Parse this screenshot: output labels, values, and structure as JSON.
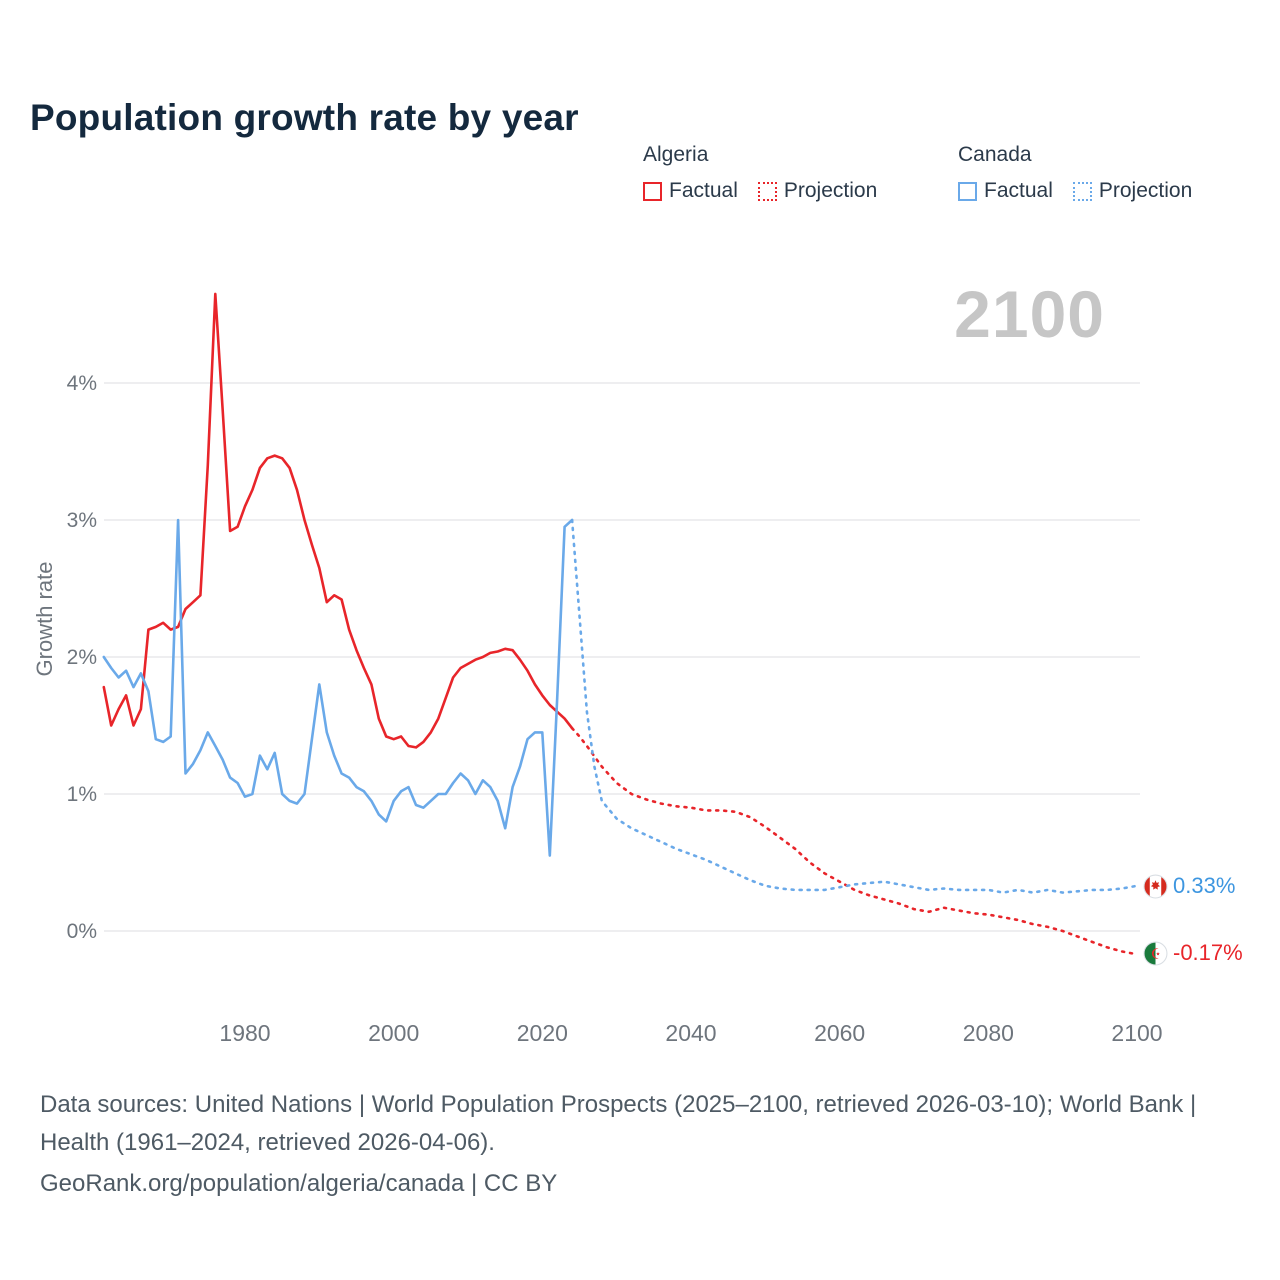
{
  "title": "Population growth rate by year",
  "watermark": "2100",
  "legend": {
    "groups": [
      {
        "name": "Algeria",
        "color": "#e8252a",
        "items": [
          {
            "label": "Factual",
            "style": "solid"
          },
          {
            "label": "Projection",
            "style": "dotted"
          }
        ]
      },
      {
        "name": "Canada",
        "color": "#6aa9e9",
        "items": [
          {
            "label": "Factual",
            "style": "solid"
          },
          {
            "label": "Projection",
            "style": "dotted"
          }
        ]
      }
    ]
  },
  "end_labels": [
    {
      "country": "Canada",
      "flag": "canada-flag-icon",
      "value": "0.33%",
      "color": "#3d96e0"
    },
    {
      "country": "Algeria",
      "flag": "algeria-flag-icon",
      "value": "-0.17%",
      "color": "#e8252a"
    }
  ],
  "footer": {
    "sources": "Data sources: United Nations | World Population Prospects (2025–2100, retrieved 2026-03-10); World Bank | Health (1961–2024, retrieved 2026-04-06).",
    "attribution": "GeoRank.org/population/algeria/canada | CC BY"
  },
  "chart_data": {
    "type": "line",
    "title": "Population growth rate by year",
    "xlabel": "",
    "ylabel": "Growth rate",
    "grid": "horizontal",
    "legend_position": "top-right",
    "xlim": [
      1961,
      2100
    ],
    "ylim": [
      -0.4,
      4.8
    ],
    "y_axis": {
      "ticks": [
        {
          "value": 0,
          "label": "0%"
        },
        {
          "value": 1,
          "label": "1%"
        },
        {
          "value": 2,
          "label": "2%"
        },
        {
          "value": 3,
          "label": "3%"
        },
        {
          "value": 4,
          "label": "4%"
        }
      ]
    },
    "x_axis": {
      "ticks": [
        1980,
        2000,
        2020,
        2040,
        2060,
        2080,
        2100
      ]
    },
    "series": [
      {
        "name": "Algeria Factual",
        "color": "#e8252a",
        "style": "solid",
        "points": [
          [
            1961,
            1.78
          ],
          [
            1962,
            1.5
          ],
          [
            1963,
            1.62
          ],
          [
            1964,
            1.72
          ],
          [
            1965,
            1.5
          ],
          [
            1966,
            1.62
          ],
          [
            1967,
            2.2
          ],
          [
            1968,
            2.22
          ],
          [
            1969,
            2.25
          ],
          [
            1970,
            2.2
          ],
          [
            1971,
            2.22
          ],
          [
            1972,
            2.35
          ],
          [
            1973,
            2.4
          ],
          [
            1974,
            2.45
          ],
          [
            1975,
            3.4
          ],
          [
            1976,
            4.65
          ],
          [
            1977,
            3.8
          ],
          [
            1978,
            2.92
          ],
          [
            1979,
            2.95
          ],
          [
            1980,
            3.1
          ],
          [
            1981,
            3.22
          ],
          [
            1982,
            3.38
          ],
          [
            1983,
            3.45
          ],
          [
            1984,
            3.47
          ],
          [
            1985,
            3.45
          ],
          [
            1986,
            3.38
          ],
          [
            1987,
            3.22
          ],
          [
            1988,
            3.0
          ],
          [
            1989,
            2.82
          ],
          [
            1990,
            2.65
          ],
          [
            1991,
            2.4
          ],
          [
            1992,
            2.45
          ],
          [
            1993,
            2.42
          ],
          [
            1994,
            2.2
          ],
          [
            1995,
            2.05
          ],
          [
            1996,
            1.92
          ],
          [
            1997,
            1.8
          ],
          [
            1998,
            1.55
          ],
          [
            1999,
            1.42
          ],
          [
            2000,
            1.4
          ],
          [
            2001,
            1.42
          ],
          [
            2002,
            1.35
          ],
          [
            2003,
            1.34
          ],
          [
            2004,
            1.38
          ],
          [
            2005,
            1.45
          ],
          [
            2006,
            1.55
          ],
          [
            2007,
            1.7
          ],
          [
            2008,
            1.85
          ],
          [
            2009,
            1.92
          ],
          [
            2010,
            1.95
          ],
          [
            2011,
            1.98
          ],
          [
            2012,
            2.0
          ],
          [
            2013,
            2.03
          ],
          [
            2014,
            2.04
          ],
          [
            2015,
            2.06
          ],
          [
            2016,
            2.05
          ],
          [
            2017,
            1.98
          ],
          [
            2018,
            1.9
          ],
          [
            2019,
            1.8
          ],
          [
            2020,
            1.72
          ],
          [
            2021,
            1.65
          ],
          [
            2022,
            1.6
          ],
          [
            2023,
            1.55
          ],
          [
            2024,
            1.48
          ]
        ]
      },
      {
        "name": "Algeria Projection",
        "color": "#e8252a",
        "style": "dotted",
        "points": [
          [
            2024,
            1.48
          ],
          [
            2025,
            1.42
          ],
          [
            2026,
            1.35
          ],
          [
            2028,
            1.2
          ],
          [
            2030,
            1.08
          ],
          [
            2032,
            1.0
          ],
          [
            2034,
            0.96
          ],
          [
            2036,
            0.93
          ],
          [
            2038,
            0.91
          ],
          [
            2040,
            0.9
          ],
          [
            2042,
            0.88
          ],
          [
            2044,
            0.88
          ],
          [
            2046,
            0.87
          ],
          [
            2048,
            0.83
          ],
          [
            2050,
            0.76
          ],
          [
            2052,
            0.68
          ],
          [
            2054,
            0.6
          ],
          [
            2056,
            0.5
          ],
          [
            2058,
            0.42
          ],
          [
            2060,
            0.36
          ],
          [
            2062,
            0.3
          ],
          [
            2064,
            0.26
          ],
          [
            2066,
            0.23
          ],
          [
            2068,
            0.2
          ],
          [
            2070,
            0.16
          ],
          [
            2072,
            0.14
          ],
          [
            2074,
            0.17
          ],
          [
            2076,
            0.15
          ],
          [
            2078,
            0.13
          ],
          [
            2080,
            0.12
          ],
          [
            2082,
            0.1
          ],
          [
            2084,
            0.08
          ],
          [
            2086,
            0.05
          ],
          [
            2088,
            0.03
          ],
          [
            2090,
            0.0
          ],
          [
            2092,
            -0.04
          ],
          [
            2094,
            -0.08
          ],
          [
            2096,
            -0.12
          ],
          [
            2098,
            -0.15
          ],
          [
            2100,
            -0.17
          ]
        ]
      },
      {
        "name": "Canada Factual",
        "color": "#6aa9e9",
        "style": "solid",
        "points": [
          [
            1961,
            2.0
          ],
          [
            1962,
            1.92
          ],
          [
            1963,
            1.85
          ],
          [
            1964,
            1.9
          ],
          [
            1965,
            1.78
          ],
          [
            1966,
            1.88
          ],
          [
            1967,
            1.75
          ],
          [
            1968,
            1.4
          ],
          [
            1969,
            1.38
          ],
          [
            1970,
            1.42
          ],
          [
            1971,
            3.0
          ],
          [
            1972,
            1.15
          ],
          [
            1973,
            1.22
          ],
          [
            1974,
            1.32
          ],
          [
            1975,
            1.45
          ],
          [
            1976,
            1.35
          ],
          [
            1977,
            1.25
          ],
          [
            1978,
            1.12
          ],
          [
            1979,
            1.08
          ],
          [
            1980,
            0.98
          ],
          [
            1981,
            1.0
          ],
          [
            1982,
            1.28
          ],
          [
            1983,
            1.18
          ],
          [
            1984,
            1.3
          ],
          [
            1985,
            1.0
          ],
          [
            1986,
            0.95
          ],
          [
            1987,
            0.93
          ],
          [
            1988,
            1.0
          ],
          [
            1989,
            1.4
          ],
          [
            1990,
            1.8
          ],
          [
            1991,
            1.45
          ],
          [
            1992,
            1.28
          ],
          [
            1993,
            1.15
          ],
          [
            1994,
            1.12
          ],
          [
            1995,
            1.05
          ],
          [
            1996,
            1.02
          ],
          [
            1997,
            0.95
          ],
          [
            1998,
            0.85
          ],
          [
            1999,
            0.8
          ],
          [
            2000,
            0.95
          ],
          [
            2001,
            1.02
          ],
          [
            2002,
            1.05
          ],
          [
            2003,
            0.92
          ],
          [
            2004,
            0.9
          ],
          [
            2005,
            0.95
          ],
          [
            2006,
            1.0
          ],
          [
            2007,
            1.0
          ],
          [
            2008,
            1.08
          ],
          [
            2009,
            1.15
          ],
          [
            2010,
            1.1
          ],
          [
            2011,
            1.0
          ],
          [
            2012,
            1.1
          ],
          [
            2013,
            1.05
          ],
          [
            2014,
            0.95
          ],
          [
            2015,
            0.75
          ],
          [
            2016,
            1.05
          ],
          [
            2017,
            1.2
          ],
          [
            2018,
            1.4
          ],
          [
            2019,
            1.45
          ],
          [
            2020,
            1.45
          ],
          [
            2021,
            0.55
          ],
          [
            2022,
            1.7
          ],
          [
            2023,
            2.95
          ],
          [
            2024,
            3.0
          ]
        ]
      },
      {
        "name": "Canada Projection",
        "color": "#6aa9e9",
        "style": "dotted",
        "points": [
          [
            2024,
            3.0
          ],
          [
            2025,
            2.3
          ],
          [
            2026,
            1.6
          ],
          [
            2027,
            1.2
          ],
          [
            2028,
            0.95
          ],
          [
            2030,
            0.82
          ],
          [
            2032,
            0.75
          ],
          [
            2034,
            0.7
          ],
          [
            2036,
            0.65
          ],
          [
            2038,
            0.6
          ],
          [
            2040,
            0.56
          ],
          [
            2042,
            0.52
          ],
          [
            2044,
            0.47
          ],
          [
            2046,
            0.42
          ],
          [
            2048,
            0.37
          ],
          [
            2050,
            0.33
          ],
          [
            2052,
            0.31
          ],
          [
            2054,
            0.3
          ],
          [
            2056,
            0.3
          ],
          [
            2058,
            0.3
          ],
          [
            2060,
            0.32
          ],
          [
            2062,
            0.34
          ],
          [
            2064,
            0.35
          ],
          [
            2066,
            0.36
          ],
          [
            2068,
            0.34
          ],
          [
            2070,
            0.32
          ],
          [
            2072,
            0.3
          ],
          [
            2074,
            0.31
          ],
          [
            2076,
            0.3
          ],
          [
            2078,
            0.3
          ],
          [
            2080,
            0.3
          ],
          [
            2082,
            0.28
          ],
          [
            2084,
            0.3
          ],
          [
            2086,
            0.28
          ],
          [
            2088,
            0.3
          ],
          [
            2090,
            0.28
          ],
          [
            2092,
            0.29
          ],
          [
            2094,
            0.3
          ],
          [
            2096,
            0.3
          ],
          [
            2098,
            0.31
          ],
          [
            2100,
            0.33
          ]
        ]
      }
    ]
  }
}
